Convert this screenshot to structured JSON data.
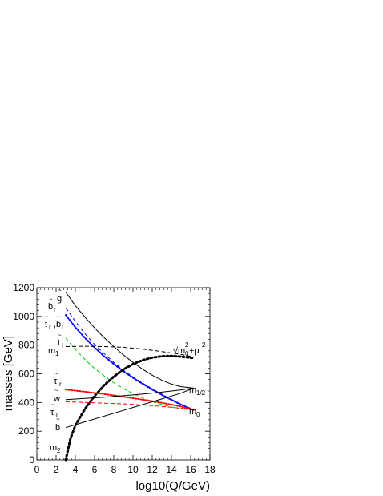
{
  "chart_data": {
    "type": "line",
    "title": "",
    "xlabel": "log10(Q/GeV)",
    "ylabel": "masses [GeV]",
    "xlim": [
      0,
      18
    ],
    "ylim": [
      0,
      1200
    ],
    "x_ticks": [
      0,
      2,
      4,
      6,
      8,
      10,
      12,
      14,
      16,
      18
    ],
    "y_ticks": [
      0,
      200,
      400,
      600,
      800,
      1000,
      1200
    ],
    "grid": false,
    "legend": "none",
    "series": [
      {
        "label": "g~",
        "style": "solid",
        "color": "#000000",
        "x": [
          3.0,
          4.0,
          5.0,
          6.0,
          7.0,
          8.0,
          9.0,
          10.0,
          11.0,
          12.0,
          13.0,
          14.0,
          15.0,
          16.3
        ],
        "y": [
          1170,
          1075,
          995,
          920,
          852,
          790,
          732,
          680,
          632,
          590,
          556,
          528,
          510,
          500
        ]
      },
      {
        "label": "b~R / b~L",
        "style": "dashed",
        "color": "#0000ff",
        "x": [
          3.0,
          4.0,
          5.0,
          6.0,
          7.0,
          8.0,
          9.0,
          10.0,
          11.0,
          12.0,
          13.0,
          14.0,
          15.0,
          16.3
        ],
        "y": [
          1060,
          965,
          880,
          805,
          740,
          680,
          625,
          578,
          535,
          495,
          458,
          422,
          388,
          348
        ]
      },
      {
        "label": "t~R, b~L",
        "style": "dotted",
        "color": "#0000ff",
        "x": [
          3.0,
          4.0,
          5.0,
          6.0,
          7.0,
          8.0,
          9.0,
          10.0,
          11.0,
          12.0,
          13.0,
          14.0,
          15.0,
          16.3
        ],
        "y": [
          1010,
          925,
          850,
          783,
          722,
          668,
          618,
          572,
          530,
          490,
          453,
          418,
          385,
          348
        ]
      },
      {
        "label": "t~L",
        "style": "dashed",
        "color": "#00cc00",
        "x": [
          3.0,
          4.0,
          5.0,
          6.0,
          7.0,
          8.0,
          9.0,
          10.0,
          11.0,
          12.0,
          13.0,
          14.0,
          15.0,
          16.3
        ],
        "y": [
          850,
          770,
          700,
          638,
          585,
          538,
          497,
          462,
          432,
          406,
          385,
          368,
          355,
          348
        ]
      },
      {
        "label": "sqrt(m0^2 + mu^2)",
        "style": "dashed",
        "color": "#000000",
        "x": [
          3.0,
          5.0,
          7.0,
          9.0,
          11.0,
          13.0,
          15.0,
          16.3
        ],
        "y": [
          790,
          792,
          790,
          785,
          772,
          755,
          735,
          718
        ]
      },
      {
        "label": "m1",
        "style": "dotted-thick",
        "color": "#000000",
        "x": [
          3.0,
          3.5,
          4.0,
          5.0,
          6.0,
          7.0,
          8.0,
          9.0,
          10.0,
          11.0,
          12.0,
          13.0,
          14.0,
          15.0,
          16.3
        ],
        "y": [
          0,
          150,
          240,
          355,
          445,
          520,
          580,
          630,
          668,
          695,
          713,
          722,
          724,
          720,
          710
        ]
      },
      {
        "label": "tau~R",
        "style": "dotted",
        "color": "#ff0000",
        "x": [
          3.0,
          5.0,
          7.0,
          9.0,
          11.0,
          13.0,
          15.0,
          16.3
        ],
        "y": [
          490,
          475,
          458,
          440,
          420,
          398,
          372,
          348
        ]
      },
      {
        "label": "tau~L",
        "style": "dashed",
        "color": "#ff0000",
        "x": [
          3.0,
          5.0,
          7.0,
          9.0,
          11.0,
          13.0,
          15.0,
          16.3
        ],
        "y": [
          405,
          400,
          395,
          390,
          383,
          373,
          360,
          348
        ]
      },
      {
        "label": "w~",
        "style": "solid",
        "color": "#000000",
        "x": [
          3.0,
          5.0,
          7.0,
          9.0,
          11.0,
          13.0,
          15.0,
          16.3
        ],
        "y": [
          420,
          428,
          437,
          447,
          458,
          472,
          488,
          500
        ]
      },
      {
        "label": "b~",
        "style": "solid",
        "color": "#000000",
        "x": [
          3.0,
          5.0,
          7.0,
          9.0,
          11.0,
          13.0,
          15.0,
          16.3
        ],
        "y": [
          225,
          265,
          305,
          345,
          385,
          425,
          465,
          500
        ]
      }
    ],
    "annotations": {
      "g": "g",
      "bR_main": "b",
      "bR_sub": "r",
      "bR_tail": ",",
      "tR_main": "t",
      "tR_sub": "r",
      "bL_main": "b",
      "bL_sub": "l",
      "m1_main": "m",
      "m1_sub": "1",
      "tL_main": "t",
      "tL_sub": "l",
      "tauR_main": "τ",
      "tauR_sub": "r",
      "w": "w",
      "tauL_main": "τ",
      "tauL_sub": "l",
      "b": "b",
      "m2_main": "m",
      "m2_sub": "2",
      "mhalf_main": "m",
      "mhalf_sub": "1/2",
      "m0_main": "m",
      "m0_sub": "0",
      "sq_a": "√m",
      "sq_sub": "0",
      "sq_sup": "2",
      "sq_b": "+μ",
      "sq_sup2": "2",
      "tilde": "~"
    }
  }
}
